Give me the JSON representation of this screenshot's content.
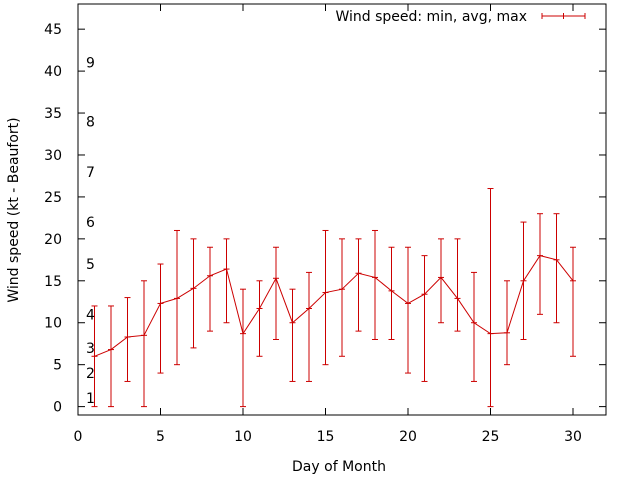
{
  "chart_data": {
    "type": "line",
    "title": "",
    "xlabel": "Day of Month",
    "ylabel": "Wind speed (kt - Beaufort)",
    "xlim": [
      0,
      32
    ],
    "ylim": [
      -1,
      48
    ],
    "xticks": [
      0,
      5,
      10,
      15,
      20,
      25,
      30
    ],
    "yticks": [
      0,
      5,
      10,
      15,
      20,
      25,
      30,
      35,
      40,
      45
    ],
    "beaufort_labels": [
      {
        "label": "1",
        "value": 1
      },
      {
        "label": "2",
        "value": 4
      },
      {
        "label": "3",
        "value": 7
      },
      {
        "label": "4",
        "value": 11
      },
      {
        "label": "5",
        "value": 17
      },
      {
        "label": "6",
        "value": 22
      },
      {
        "label": "7",
        "value": 28
      },
      {
        "label": "8",
        "value": 34
      },
      {
        "label": "9",
        "value": 41
      }
    ],
    "legend": {
      "label": "Wind speed: min, avg, max",
      "position": "top-right"
    },
    "color": "#cc0000",
    "series": [
      {
        "name": "Wind speed: min, avg, max",
        "x": [
          1,
          2,
          3,
          4,
          5,
          6,
          7,
          8,
          9,
          10,
          11,
          12,
          13,
          14,
          15,
          16,
          17,
          18,
          19,
          20,
          21,
          22,
          23,
          24,
          25,
          26,
          27,
          28,
          29,
          30
        ],
        "avg": [
          6,
          6.8,
          8.3,
          8.5,
          12.3,
          12.9,
          14.1,
          15.6,
          16.4,
          8.7,
          11.7,
          15.3,
          10,
          11.7,
          13.6,
          14,
          15.9,
          15.4,
          13.8,
          12.3,
          13.4,
          15.4,
          12.9,
          10,
          8.7,
          8.8,
          15,
          18,
          17.5,
          15
        ],
        "min": [
          0,
          0,
          3,
          0,
          4,
          5,
          7,
          9,
          10,
          0,
          6,
          8,
          3,
          3,
          5,
          6,
          9,
          8,
          8,
          4,
          3,
          10,
          9,
          3,
          0,
          5,
          8,
          11,
          10,
          6
        ],
        "max": [
          12,
          12,
          13,
          15,
          17,
          21,
          20,
          19,
          20,
          14,
          15,
          19,
          14,
          16,
          21,
          20,
          20,
          21,
          19,
          19,
          18,
          20,
          20,
          16,
          26,
          15,
          22,
          23,
          23,
          19
        ]
      }
    ]
  }
}
